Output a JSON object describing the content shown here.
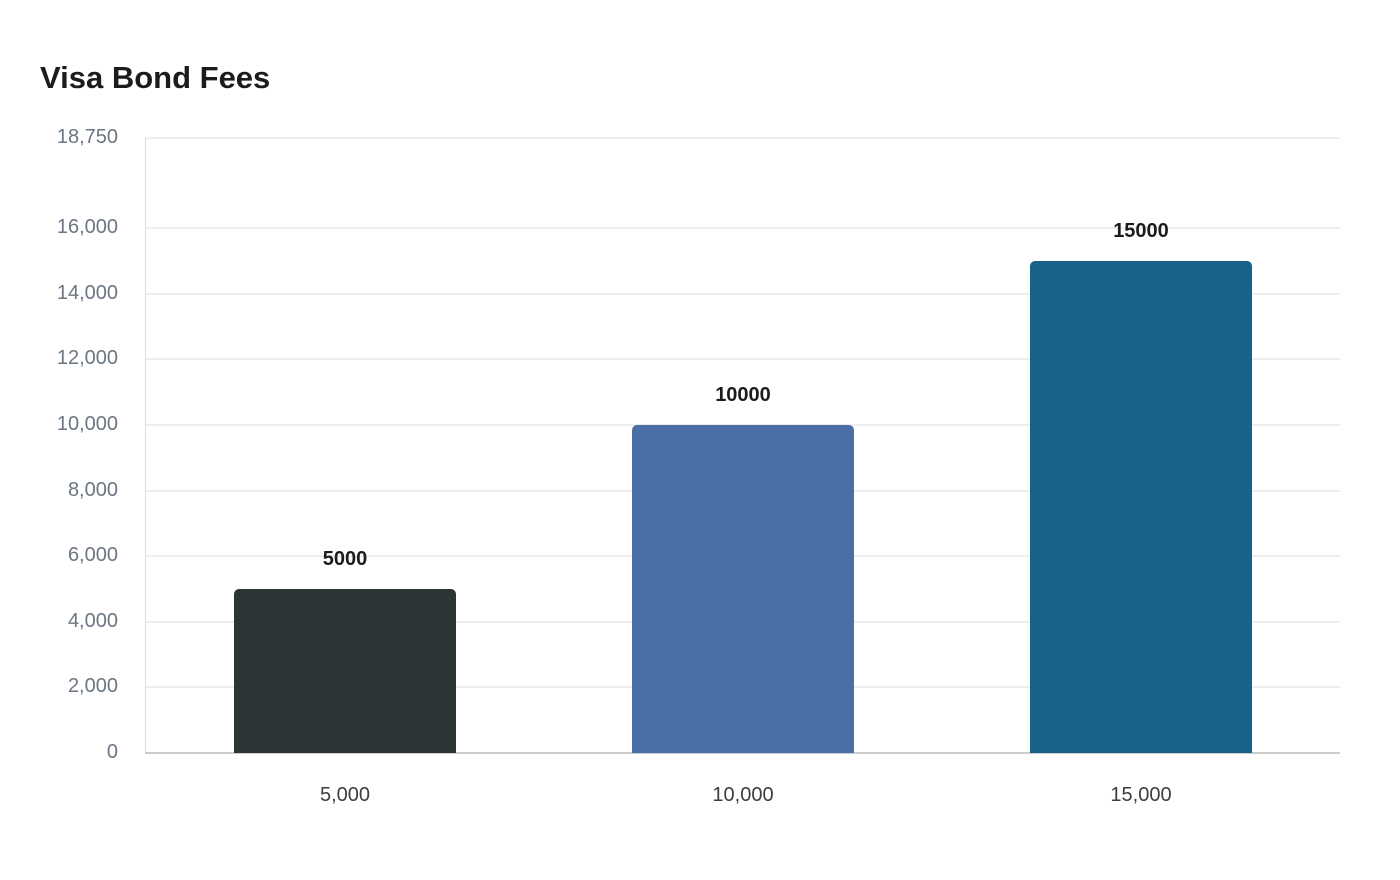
{
  "title": "Visa Bond Fees",
  "chart_data": {
    "type": "bar",
    "title": "Visa Bond Fees",
    "xlabel": "",
    "ylabel": "",
    "categories": [
      "5,000",
      "10,000",
      "15,000"
    ],
    "values": [
      5000,
      10000,
      15000
    ],
    "data_labels": [
      "5000",
      "10000",
      "15000"
    ],
    "colors": [
      "#2d3436",
      "#4a6fa5",
      "#186188"
    ],
    "ylim": [
      0,
      18750
    ],
    "yticks": [
      0,
      2000,
      4000,
      6000,
      8000,
      10000,
      12000,
      14000,
      16000,
      18750
    ],
    "ytick_labels": [
      "0",
      "2,000",
      "4,000",
      "6,000",
      "8,000",
      "10,000",
      "12,000",
      "14,000",
      "16,000",
      "18,750"
    ],
    "grid": true,
    "legend": null
  }
}
